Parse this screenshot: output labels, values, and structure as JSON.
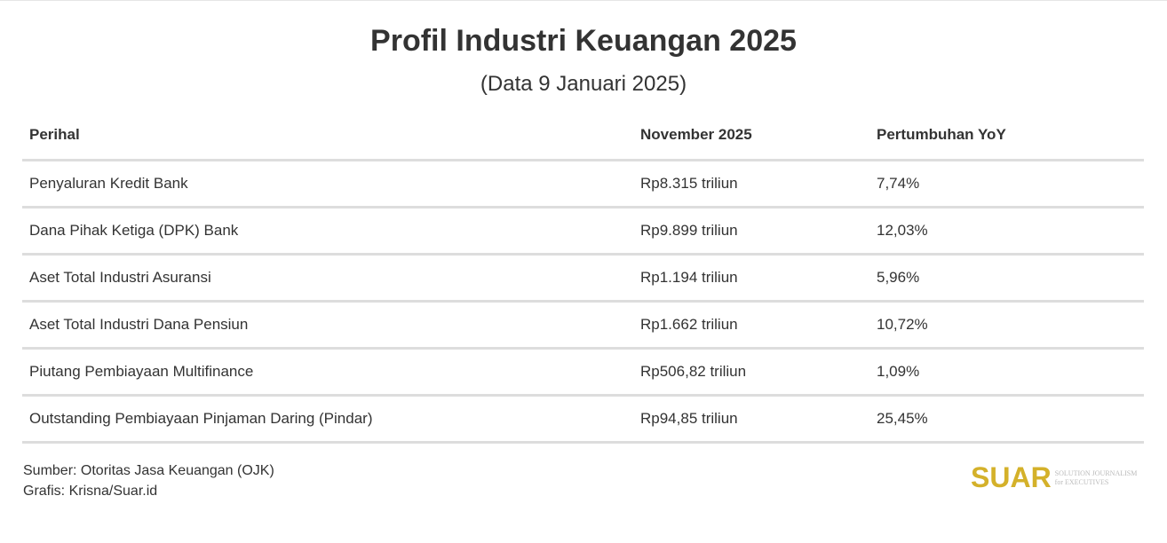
{
  "title": "Profil Industri Keuangan 2025",
  "subtitle": "(Data 9 Januari 2025)",
  "table": {
    "headers": [
      "Perihal",
      "November 2025",
      "Pertumbuhan YoY"
    ],
    "rows": [
      [
        "Penyaluran Kredit Bank",
        "Rp8.315 triliun",
        "7,74%"
      ],
      [
        "Dana Pihak Ketiga (DPK) Bank",
        "Rp9.899 triliun",
        "12,03%"
      ],
      [
        "Aset Total Industri Asuransi",
        "Rp1.194 triliun",
        "5,96%"
      ],
      [
        "Aset Total Industri Dana Pensiun",
        "Rp1.662 triliun",
        "10,72%"
      ],
      [
        "Piutang Pembiayaan Multifinance",
        "Rp506,82 triliun",
        "1,09%"
      ],
      [
        "Outstanding Pembiayaan Pinjaman Daring (Pindar)",
        "Rp94,85 triliun",
        "25,45%"
      ]
    ]
  },
  "footer": {
    "source": "Sumber: Otoritas Jasa Keuangan (OJK)",
    "credit": "Grafis: Krisna/Suar.id"
  },
  "logo": {
    "name": "SUAR",
    "tagline_1": "SOLUTION JOURNALISM",
    "tagline_2": "for EXECUTIVES",
    "color": "#d4b12a"
  }
}
